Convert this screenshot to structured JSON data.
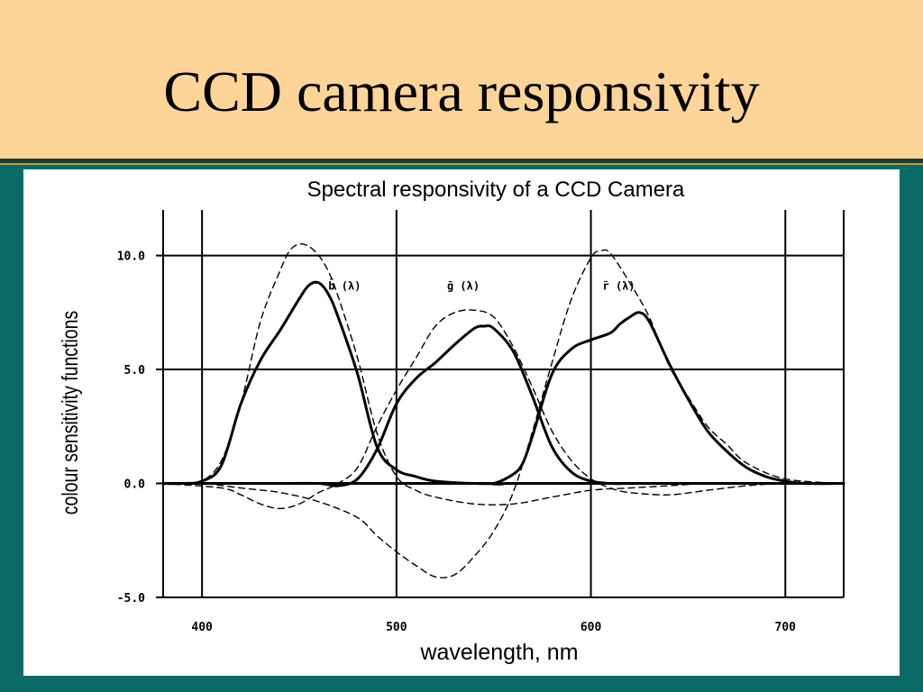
{
  "slide": {
    "title": "CCD camera responsivity",
    "colors": {
      "title_band": "#fed598",
      "background": "#0a6b66"
    }
  },
  "chart_data": {
    "type": "line",
    "title": "Spectral responsivity of a CCD Camera",
    "xlabel": "wavelength, nm",
    "ylabel": "colour sensitivity functions",
    "xlim": [
      380,
      730
    ],
    "ylim": [
      -5,
      12
    ],
    "xticks": [
      400,
      500,
      600,
      700
    ],
    "yticks": [
      -5,
      0,
      5,
      10
    ],
    "xtick_labels": [
      "400",
      "500",
      "600",
      "700"
    ],
    "ytick_labels": [
      "-5.0",
      "0.0",
      "5.0",
      "10.0"
    ],
    "grid": true,
    "curve_labels": [
      {
        "text": "b̄ (λ)",
        "x": 465,
        "y": 8.5
      },
      {
        "text": "ḡ (λ)",
        "x": 526,
        "y": 8.5
      },
      {
        "text": "r̄ (λ)",
        "x": 606,
        "y": 8.5
      }
    ],
    "series": [
      {
        "style": "solid",
        "x": [
          380,
          390,
          400,
          410,
          420,
          430,
          440,
          450,
          455,
          460,
          465,
          470,
          480,
          490,
          500,
          510,
          520,
          540,
          560,
          580,
          600,
          620,
          640,
          660,
          680,
          700,
          730
        ],
        "y": [
          0,
          0,
          0.1,
          0.8,
          3.5,
          5.4,
          6.7,
          8.1,
          8.7,
          8.8,
          8.3,
          7.3,
          4.8,
          1.6,
          0.6,
          0.3,
          0.1,
          0,
          0,
          0,
          0,
          0,
          0,
          0,
          0,
          0,
          0
        ]
      },
      {
        "style": "dashed",
        "x": [
          380,
          390,
          400,
          410,
          420,
          430,
          440,
          445,
          450,
          455,
          460,
          465,
          470,
          480,
          490,
          500,
          510,
          520,
          540,
          560,
          580,
          600,
          620,
          640,
          660,
          680,
          700,
          730
        ],
        "y": [
          0,
          0,
          0.1,
          1.0,
          3.5,
          7.1,
          9.3,
          10.2,
          10.5,
          10.4,
          10.0,
          9.3,
          8.2,
          5.5,
          2.2,
          0.3,
          -0.3,
          -0.6,
          -0.9,
          -0.9,
          -0.6,
          -0.3,
          -0.2,
          -0.1,
          0,
          0,
          0,
          0
        ]
      },
      {
        "style": "solid",
        "x": [
          380,
          440,
          460,
          470,
          480,
          490,
          500,
          510,
          520,
          530,
          540,
          545,
          550,
          560,
          570,
          580,
          590,
          600,
          610,
          620,
          630,
          640,
          660,
          680,
          700,
          730
        ],
        "y": [
          0,
          0,
          0,
          -0.1,
          0.2,
          1.5,
          3.5,
          4.6,
          5.3,
          6.1,
          6.8,
          6.9,
          6.8,
          5.8,
          3.8,
          1.6,
          0.5,
          0.1,
          0,
          0,
          0,
          0,
          0,
          0,
          0,
          0
        ]
      },
      {
        "style": "dashed",
        "x": [
          380,
          410,
          420,
          430,
          440,
          450,
          460,
          470,
          480,
          490,
          500,
          510,
          520,
          530,
          540,
          550,
          560,
          570,
          580,
          590,
          600,
          610,
          620,
          640,
          660,
          680,
          700,
          730
        ],
        "y": [
          0,
          -0.2,
          -0.5,
          -0.9,
          -1.1,
          -0.9,
          -0.4,
          0,
          0.7,
          2.5,
          4.1,
          5.5,
          6.9,
          7.5,
          7.6,
          7.3,
          6.0,
          4.2,
          2.3,
          1.0,
          0.2,
          -0.2,
          -0.4,
          -0.5,
          -0.3,
          -0.1,
          0,
          0
        ]
      },
      {
        "style": "solid",
        "x": [
          380,
          540,
          550,
          560,
          565,
          570,
          580,
          590,
          600,
          610,
          615,
          620,
          625,
          630,
          640,
          650,
          660,
          670,
          680,
          690,
          700,
          710,
          730
        ],
        "y": [
          0,
          0,
          0,
          0.4,
          0.9,
          2.1,
          4.8,
          5.9,
          6.3,
          6.6,
          7.0,
          7.3,
          7.5,
          7.1,
          5.3,
          3.7,
          2.3,
          1.4,
          0.7,
          0.3,
          0.1,
          0,
          0
        ]
      },
      {
        "style": "dashed",
        "x": [
          380,
          400,
          420,
          440,
          460,
          480,
          490,
          500,
          510,
          520,
          530,
          540,
          550,
          560,
          570,
          580,
          590,
          600,
          605,
          610,
          620,
          630,
          640,
          650,
          660,
          670,
          680,
          700,
          730
        ],
        "y": [
          0,
          0,
          -0.2,
          -0.4,
          -0.8,
          -1.5,
          -2.3,
          -3.0,
          -3.6,
          -4.1,
          -4.0,
          -3.2,
          -2.1,
          -0.4,
          2.3,
          5.3,
          8.1,
          9.9,
          10.2,
          10.1,
          8.8,
          7.3,
          5.2,
          3.8,
          2.5,
          1.7,
          0.9,
          0.2,
          0
        ]
      }
    ]
  }
}
